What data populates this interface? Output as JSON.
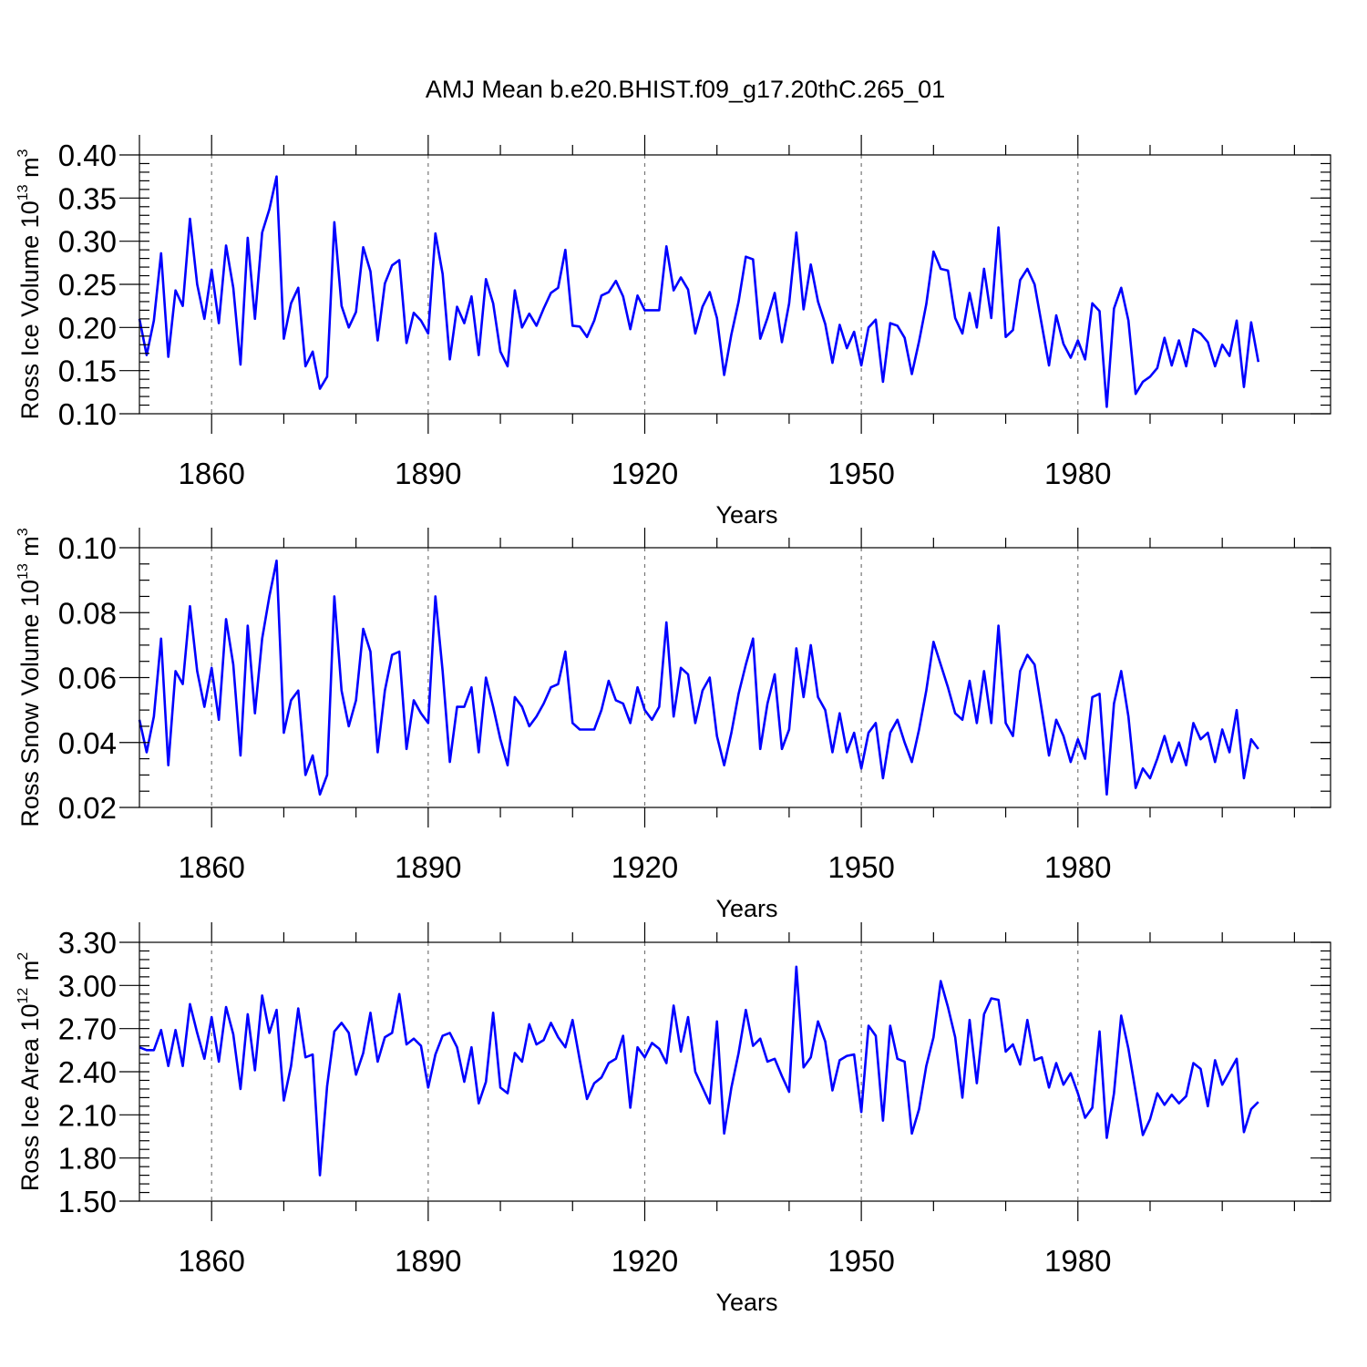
{
  "figure": {
    "title": "AMJ Mean b.e20.BHIST.f09_g17.20thC.265_01"
  },
  "chart_data": [
    {
      "type": "line",
      "id": "ice-volume",
      "title": "AMJ Mean b.e20.BHIST.f09_g17.20thC.265_01",
      "xlabel": "Years",
      "ylabel_main": "Ross Ice Volume 10",
      "ylabel_sup": "13",
      "ylabel_unit": " m",
      "ylabel_unit_sup": "3",
      "xlim": [
        1850,
        2015
      ],
      "ylim": [
        0.1,
        0.4
      ],
      "yticks": [
        0.1,
        0.15,
        0.2,
        0.25,
        0.3,
        0.35,
        0.4
      ],
      "ytick_labels": [
        "0.10",
        "0.15",
        "0.20",
        "0.25",
        "0.30",
        "0.35",
        "0.40"
      ],
      "yminor_step": 0.01,
      "xticks": [
        1860,
        1890,
        1920,
        1950,
        1980
      ],
      "xtick_labels": [
        "1860",
        "1890",
        "1920",
        "1950",
        "1980"
      ],
      "xminor_step": 10,
      "grid_x": true,
      "color": "#0000ff",
      "x_start": 1850,
      "values": [
        0.21,
        0.168,
        0.208,
        0.286,
        0.166,
        0.243,
        0.225,
        0.326,
        0.25,
        0.21,
        0.267,
        0.205,
        0.295,
        0.246,
        0.157,
        0.304,
        0.21,
        0.31,
        0.337,
        0.375,
        0.187,
        0.228,
        0.246,
        0.155,
        0.172,
        0.129,
        0.143,
        0.322,
        0.225,
        0.2,
        0.218,
        0.293,
        0.265,
        0.185,
        0.251,
        0.272,
        0.278,
        0.182,
        0.217,
        0.208,
        0.193,
        0.309,
        0.262,
        0.163,
        0.224,
        0.205,
        0.236,
        0.168,
        0.256,
        0.228,
        0.172,
        0.155,
        0.243,
        0.2,
        0.216,
        0.202,
        0.222,
        0.24,
        0.246,
        0.29,
        0.202,
        0.201,
        0.189,
        0.208,
        0.237,
        0.241,
        0.254,
        0.236,
        0.198,
        0.237,
        0.22,
        0.22,
        0.22,
        0.294,
        0.243,
        0.258,
        0.244,
        0.193,
        0.224,
        0.241,
        0.211,
        0.145,
        0.192,
        0.23,
        0.282,
        0.279,
        0.187,
        0.211,
        0.24,
        0.183,
        0.228,
        0.31,
        0.221,
        0.273,
        0.23,
        0.204,
        0.159,
        0.203,
        0.176,
        0.195,
        0.156,
        0.2,
        0.209,
        0.137,
        0.205,
        0.202,
        0.188,
        0.146,
        0.184,
        0.227,
        0.288,
        0.268,
        0.266,
        0.211,
        0.193,
        0.24,
        0.2,
        0.268,
        0.211,
        0.316,
        0.189,
        0.197,
        0.255,
        0.268,
        0.25,
        0.203,
        0.156,
        0.214,
        0.181,
        0.165,
        0.185,
        0.163,
        0.228,
        0.219,
        0.108,
        0.222,
        0.246,
        0.208,
        0.123,
        0.137,
        0.143,
        0.153,
        0.188,
        0.156,
        0.185,
        0.155,
        0.198,
        0.193,
        0.183,
        0.155,
        0.18,
        0.167,
        0.208,
        0.131,
        0.206,
        0.16
      ]
    },
    {
      "type": "line",
      "id": "snow-volume",
      "title": "",
      "xlabel": "Years",
      "ylabel_main": "Ross Snow Volume 10",
      "ylabel_sup": "13",
      "ylabel_unit": " m",
      "ylabel_unit_sup": "3",
      "xlim": [
        1850,
        2015
      ],
      "ylim": [
        0.02,
        0.1
      ],
      "yticks": [
        0.02,
        0.04,
        0.06,
        0.08,
        0.1
      ],
      "ytick_labels": [
        "0.02",
        "0.04",
        "0.06",
        "0.08",
        "0.10"
      ],
      "yminor_step": 0.005,
      "xticks": [
        1860,
        1890,
        1920,
        1950,
        1980
      ],
      "xtick_labels": [
        "1860",
        "1890",
        "1920",
        "1950",
        "1980"
      ],
      "xminor_step": 10,
      "grid_x": true,
      "color": "#0000ff",
      "x_start": 1850,
      "values": [
        0.047,
        0.037,
        0.048,
        0.072,
        0.033,
        0.062,
        0.058,
        0.082,
        0.062,
        0.051,
        0.063,
        0.047,
        0.078,
        0.064,
        0.036,
        0.076,
        0.049,
        0.072,
        0.085,
        0.096,
        0.043,
        0.053,
        0.056,
        0.03,
        0.036,
        0.024,
        0.03,
        0.085,
        0.056,
        0.045,
        0.053,
        0.075,
        0.068,
        0.037,
        0.056,
        0.067,
        0.068,
        0.038,
        0.053,
        0.049,
        0.046,
        0.085,
        0.062,
        0.034,
        0.051,
        0.051,
        0.057,
        0.037,
        0.06,
        0.051,
        0.041,
        0.033,
        0.054,
        0.051,
        0.045,
        0.048,
        0.052,
        0.057,
        0.058,
        0.068,
        0.046,
        0.044,
        0.044,
        0.044,
        0.05,
        0.059,
        0.053,
        0.052,
        0.046,
        0.057,
        0.05,
        0.047,
        0.051,
        0.077,
        0.048,
        0.063,
        0.061,
        0.046,
        0.056,
        0.06,
        0.042,
        0.033,
        0.043,
        0.055,
        0.064,
        0.072,
        0.038,
        0.052,
        0.061,
        0.038,
        0.044,
        0.069,
        0.054,
        0.07,
        0.054,
        0.05,
        0.037,
        0.049,
        0.037,
        0.043,
        0.032,
        0.043,
        0.046,
        0.029,
        0.043,
        0.047,
        0.04,
        0.034,
        0.044,
        0.056,
        0.071,
        0.064,
        0.057,
        0.049,
        0.047,
        0.059,
        0.046,
        0.062,
        0.046,
        0.076,
        0.046,
        0.042,
        0.062,
        0.067,
        0.064,
        0.05,
        0.036,
        0.047,
        0.042,
        0.034,
        0.041,
        0.035,
        0.054,
        0.055,
        0.024,
        0.052,
        0.062,
        0.048,
        0.026,
        0.032,
        0.029,
        0.035,
        0.042,
        0.034,
        0.04,
        0.033,
        0.046,
        0.041,
        0.043,
        0.034,
        0.044,
        0.037,
        0.05,
        0.029,
        0.041,
        0.038
      ]
    },
    {
      "type": "line",
      "id": "ice-area",
      "title": "",
      "xlabel": "Years",
      "ylabel_main": "Ross Ice Area 10",
      "ylabel_sup": "12",
      "ylabel_unit": " m",
      "ylabel_unit_sup": "2",
      "xlim": [
        1850,
        2015
      ],
      "ylim": [
        1.5,
        3.3
      ],
      "yticks": [
        1.5,
        1.8,
        2.1,
        2.4,
        2.7,
        3.0,
        3.3
      ],
      "ytick_labels": [
        "1.50",
        "1.80",
        "2.10",
        "2.40",
        "2.70",
        "3.00",
        "3.30"
      ],
      "yminor_step": 0.06,
      "xticks": [
        1860,
        1890,
        1920,
        1950,
        1980
      ],
      "xtick_labels": [
        "1860",
        "1890",
        "1920",
        "1950",
        "1980"
      ],
      "xminor_step": 10,
      "grid_x": true,
      "color": "#0000ff",
      "x_start": 1850,
      "values": [
        2.57,
        2.55,
        2.55,
        2.69,
        2.44,
        2.69,
        2.44,
        2.87,
        2.67,
        2.49,
        2.78,
        2.47,
        2.85,
        2.66,
        2.28,
        2.8,
        2.41,
        2.93,
        2.67,
        2.83,
        2.2,
        2.44,
        2.84,
        2.5,
        2.52,
        1.68,
        2.3,
        2.68,
        2.74,
        2.67,
        2.38,
        2.53,
        2.81,
        2.47,
        2.64,
        2.67,
        2.94,
        2.59,
        2.63,
        2.58,
        2.29,
        2.52,
        2.65,
        2.67,
        2.57,
        2.33,
        2.57,
        2.18,
        2.33,
        2.81,
        2.29,
        2.25,
        2.53,
        2.47,
        2.73,
        2.59,
        2.62,
        2.74,
        2.64,
        2.57,
        2.76,
        2.48,
        2.21,
        2.32,
        2.36,
        2.46,
        2.49,
        2.65,
        2.15,
        2.57,
        2.5,
        2.6,
        2.56,
        2.46,
        2.86,
        2.54,
        2.78,
        2.4,
        2.29,
        2.18,
        2.75,
        1.97,
        2.29,
        2.53,
        2.83,
        2.58,
        2.63,
        2.47,
        2.49,
        2.37,
        2.26,
        3.13,
        2.43,
        2.5,
        2.75,
        2.61,
        2.27,
        2.48,
        2.51,
        2.52,
        2.12,
        2.72,
        2.65,
        2.06,
        2.72,
        2.49,
        2.47,
        1.97,
        2.14,
        2.44,
        2.64,
        3.03,
        2.85,
        2.64,
        2.22,
        2.76,
        2.32,
        2.8,
        2.91,
        2.9,
        2.54,
        2.59,
        2.45,
        2.76,
        2.48,
        2.5,
        2.29,
        2.46,
        2.31,
        2.39,
        2.25,
        2.08,
        2.15,
        2.68,
        1.94,
        2.25,
        2.79,
        2.56,
        2.26,
        1.96,
        2.07,
        2.25,
        2.17,
        2.24,
        2.18,
        2.23,
        2.46,
        2.42,
        2.16,
        2.48,
        2.31,
        2.4,
        2.49,
        1.98,
        2.14,
        2.19
      ]
    }
  ]
}
